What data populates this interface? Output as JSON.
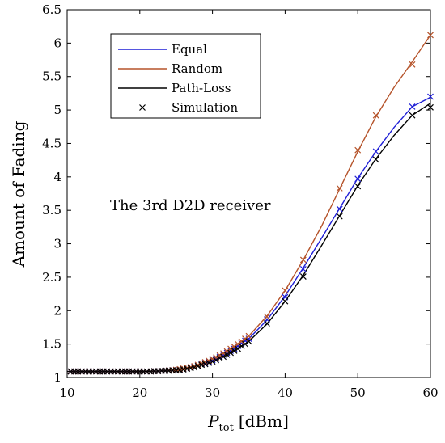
{
  "chart_data": {
    "type": "line",
    "ylabel": "Amount of Fading",
    "xlabel": {
      "main": "P",
      "sub": "tot",
      "unit": "[dBm]"
    },
    "xlim": [
      10,
      60
    ],
    "ylim": [
      1,
      6.5
    ],
    "xticks": [
      "10",
      "20",
      "30",
      "40",
      "50",
      "60"
    ],
    "yticks": [
      "1",
      "1.5",
      "2",
      "2.5",
      "3",
      "3.5",
      "4",
      "4.5",
      "5",
      "5.5",
      "6",
      "6.5"
    ],
    "annotation": "The 3rd D2D receiver",
    "legend_position": "top-left",
    "legend": [
      "Equal",
      "Random",
      "Path-Loss",
      "Simulation"
    ],
    "series": [
      {
        "name": "Equal",
        "color": "#1f1fd6",
        "x": [
          10,
          15,
          20,
          22.5,
          25,
          27.5,
          30,
          32.5,
          35,
          37.5,
          40,
          42.5,
          45,
          47.5,
          50,
          52.5,
          55,
          57.5,
          60
        ],
        "y": [
          1.09,
          1.09,
          1.09,
          1.095,
          1.11,
          1.16,
          1.26,
          1.4,
          1.58,
          1.86,
          2.22,
          2.64,
          3.08,
          3.53,
          3.98,
          4.38,
          4.74,
          5.05,
          5.19
        ],
        "sim_x": [
          10.5,
          11,
          11.5,
          12,
          12.5,
          13,
          13.5,
          14,
          14.5,
          15,
          15.5,
          16,
          16.5,
          17,
          17.5,
          18,
          18.5,
          19,
          19.5,
          20,
          20.5,
          21,
          21.5,
          22,
          22.5,
          23,
          23.5,
          24,
          24.5,
          25,
          25.5,
          26,
          26.5,
          27,
          27.5,
          28,
          28.5,
          29,
          29.5,
          30,
          30.5,
          31,
          31.5,
          32,
          32.5,
          33,
          33.5,
          34,
          34.5,
          35,
          37.5,
          40,
          42.5,
          47.5,
          50,
          52.5,
          57.5,
          60
        ],
        "sim_y": [
          1.09,
          1.09,
          1.09,
          1.09,
          1.09,
          1.09,
          1.09,
          1.09,
          1.09,
          1.09,
          1.09,
          1.09,
          1.09,
          1.09,
          1.09,
          1.09,
          1.09,
          1.09,
          1.09,
          1.09,
          1.09,
          1.09,
          1.09,
          1.095,
          1.095,
          1.1,
          1.1,
          1.105,
          1.11,
          1.11,
          1.12,
          1.13,
          1.14,
          1.15,
          1.16,
          1.18,
          1.2,
          1.22,
          1.24,
          1.26,
          1.28,
          1.31,
          1.34,
          1.37,
          1.4,
          1.43,
          1.47,
          1.51,
          1.55,
          1.58,
          1.87,
          2.2,
          2.62,
          3.52,
          3.97,
          4.38,
          5.05,
          5.2
        ],
        "marker_color": "#1f1fd6"
      },
      {
        "name": "Random",
        "color": "#b5532a",
        "x": [
          10,
          15,
          20,
          22.5,
          25,
          27.5,
          30,
          32.5,
          35,
          37.5,
          40,
          42.5,
          45,
          47.5,
          50,
          52.5,
          55,
          57.5,
          60
        ],
        "y": [
          1.09,
          1.09,
          1.09,
          1.095,
          1.115,
          1.17,
          1.28,
          1.43,
          1.62,
          1.92,
          2.3,
          2.76,
          3.26,
          3.82,
          4.38,
          4.9,
          5.34,
          5.72,
          6.12
        ],
        "sim_x": [
          10.5,
          11,
          11.5,
          12,
          12.5,
          13,
          13.5,
          14,
          14.5,
          15,
          15.5,
          16,
          16.5,
          17,
          17.5,
          18,
          18.5,
          19,
          19.5,
          20,
          20.5,
          21,
          21.5,
          22,
          22.5,
          23,
          23.5,
          24,
          24.5,
          25,
          25.5,
          26,
          26.5,
          27,
          27.5,
          28,
          28.5,
          29,
          29.5,
          30,
          30.5,
          31,
          31.5,
          32,
          32.5,
          33,
          33.5,
          34,
          34.5,
          35,
          37.5,
          40,
          42.5,
          47.5,
          50,
          52.5,
          57.5,
          60
        ],
        "sim_y": [
          1.09,
          1.09,
          1.09,
          1.09,
          1.09,
          1.09,
          1.09,
          1.09,
          1.09,
          1.09,
          1.09,
          1.09,
          1.09,
          1.09,
          1.09,
          1.09,
          1.09,
          1.09,
          1.09,
          1.09,
          1.09,
          1.09,
          1.09,
          1.095,
          1.095,
          1.1,
          1.1,
          1.105,
          1.11,
          1.115,
          1.125,
          1.135,
          1.145,
          1.155,
          1.17,
          1.19,
          1.21,
          1.23,
          1.25,
          1.28,
          1.3,
          1.33,
          1.36,
          1.39,
          1.43,
          1.46,
          1.5,
          1.54,
          1.58,
          1.62,
          1.91,
          2.3,
          2.76,
          3.83,
          4.4,
          4.92,
          5.68,
          6.12
        ],
        "marker_color": "#b5532a"
      },
      {
        "name": "Path-Loss",
        "color": "#000000",
        "x": [
          10,
          15,
          20,
          22.5,
          25,
          27.5,
          30,
          32.5,
          35,
          37.5,
          40,
          42.5,
          45,
          47.5,
          50,
          52.5,
          55,
          57.5,
          60
        ],
        "y": [
          1.09,
          1.09,
          1.09,
          1.095,
          1.105,
          1.15,
          1.24,
          1.37,
          1.54,
          1.8,
          2.14,
          2.53,
          2.97,
          3.42,
          3.87,
          4.27,
          4.62,
          4.92,
          5.1
        ],
        "sim_x": [
          10.5,
          11,
          11.5,
          12,
          12.5,
          13,
          13.5,
          14,
          14.5,
          15,
          15.5,
          16,
          16.5,
          17,
          17.5,
          18,
          18.5,
          19,
          19.5,
          20,
          20.5,
          21,
          21.5,
          22,
          22.5,
          23,
          23.5,
          24,
          24.5,
          25,
          25.5,
          26,
          26.5,
          27,
          27.5,
          28,
          28.5,
          29,
          29.5,
          30,
          30.5,
          31,
          31.5,
          32,
          32.5,
          33,
          33.5,
          34,
          34.5,
          35,
          37.5,
          40,
          42.5,
          47.5,
          50,
          52.5,
          57.5,
          60
        ],
        "sim_y": [
          1.09,
          1.09,
          1.09,
          1.09,
          1.09,
          1.09,
          1.09,
          1.09,
          1.09,
          1.09,
          1.09,
          1.09,
          1.09,
          1.09,
          1.09,
          1.09,
          1.09,
          1.09,
          1.09,
          1.09,
          1.09,
          1.09,
          1.09,
          1.095,
          1.095,
          1.1,
          1.1,
          1.1,
          1.105,
          1.105,
          1.11,
          1.12,
          1.13,
          1.14,
          1.15,
          1.17,
          1.19,
          1.2,
          1.22,
          1.24,
          1.26,
          1.29,
          1.31,
          1.34,
          1.37,
          1.4,
          1.43,
          1.47,
          1.5,
          1.54,
          1.81,
          2.14,
          2.51,
          3.41,
          3.86,
          4.26,
          4.92,
          5.04
        ],
        "marker_color": "#000000"
      }
    ]
  }
}
